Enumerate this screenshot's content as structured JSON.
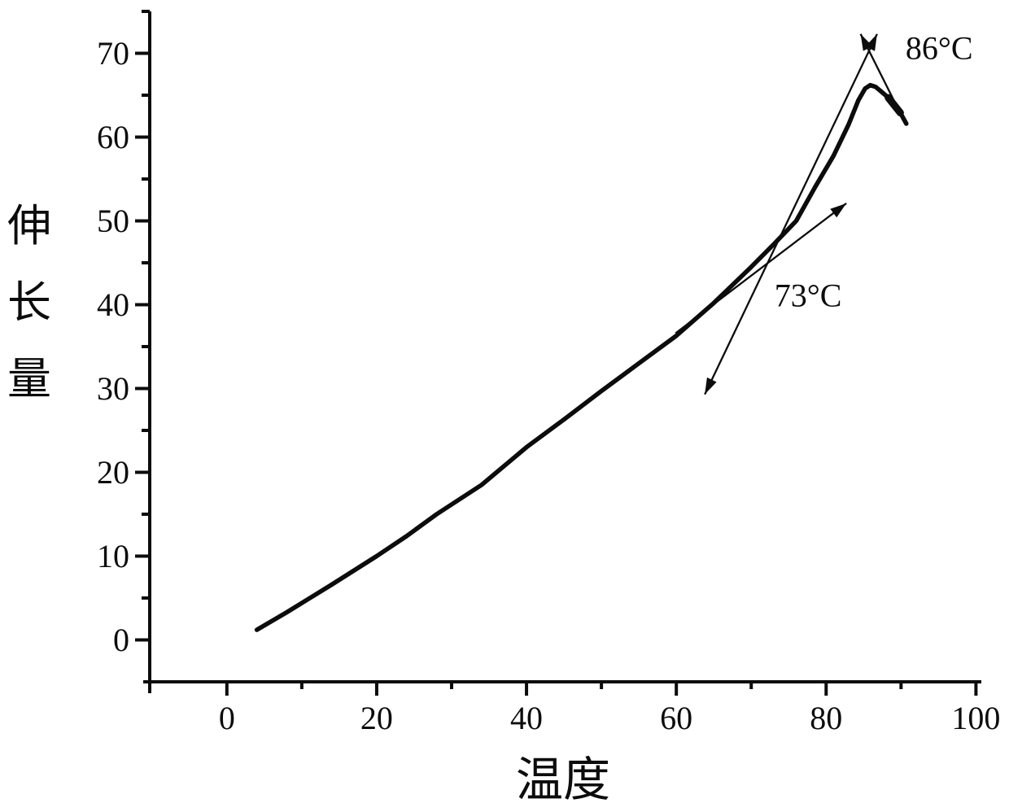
{
  "colors": {
    "ink": "#0c0c0c",
    "background": "#ffffff"
  },
  "chart_data": {
    "type": "line",
    "title": "",
    "xlabel": "温度",
    "ylabel": "伸长量",
    "xlim": [
      -10.3,
      100.5
    ],
    "ylim": [
      -5,
      75
    ],
    "grid": false,
    "legend": false,
    "x_major_ticks": [
      0,
      20,
      40,
      60,
      80,
      100
    ],
    "x_minor_ticks": [
      10,
      30,
      50,
      70,
      90
    ],
    "y_major_ticks": [
      0,
      10,
      20,
      30,
      40,
      50,
      60,
      70
    ],
    "y_minor_ticks": [
      5,
      15,
      25,
      35,
      45,
      55,
      65,
      75
    ],
    "series": [
      {
        "name": "elongation-vs-temperature",
        "points": [
          [
            4,
            1.2
          ],
          [
            8,
            3.3
          ],
          [
            14,
            6.6
          ],
          [
            20,
            10
          ],
          [
            24,
            12.4
          ],
          [
            28,
            15
          ],
          [
            34,
            18.5
          ],
          [
            40,
            23
          ],
          [
            45,
            26.3
          ],
          [
            50,
            29.7
          ],
          [
            55,
            33
          ],
          [
            60,
            36.3
          ],
          [
            65,
            40.2
          ],
          [
            70,
            44.5
          ],
          [
            73,
            47.2
          ],
          [
            76,
            50
          ],
          [
            78.5,
            54
          ],
          [
            81,
            57.8
          ],
          [
            83,
            61.5
          ],
          [
            84.3,
            64.4
          ],
          [
            85.2,
            65.8
          ],
          [
            85.9,
            66.2
          ],
          [
            86.6,
            66.0
          ],
          [
            87.4,
            65.4
          ],
          [
            88.3,
            64.7
          ],
          [
            89.9,
            62.9
          ],
          [
            90.7,
            61.6
          ]
        ]
      }
    ],
    "annotations": {
      "labels": [
        {
          "name": "peak-temperature-label",
          "text": "86°C",
          "pos": [
            90.6,
            69.3
          ]
        },
        {
          "name": "onset-temperature-label",
          "text": "73°C",
          "pos": [
            73.1,
            39.8
          ]
        }
      ],
      "tangent_lines": [
        {
          "name": "steep-tangent-arrow",
          "from": [
            63.8,
            29.3
          ],
          "to": [
            86.8,
            72.3
          ],
          "arrow_start": true,
          "arrow_end": true
        },
        {
          "name": "shallow-tangent-arrow",
          "from": [
            59.9,
            36.6
          ],
          "to": [
            82.7,
            52.1
          ],
          "arrow_start": false,
          "arrow_end": true
        },
        {
          "name": "descent-tangent-arrow",
          "from": [
            90.6,
            61.6
          ],
          "to": [
            84.6,
            72.3
          ],
          "arrow_start": false,
          "arrow_end": true
        }
      ],
      "overlap_segment": {
        "from": [
          88.3,
          64.7
        ],
        "to": [
          89.9,
          62.9
        ]
      }
    }
  }
}
